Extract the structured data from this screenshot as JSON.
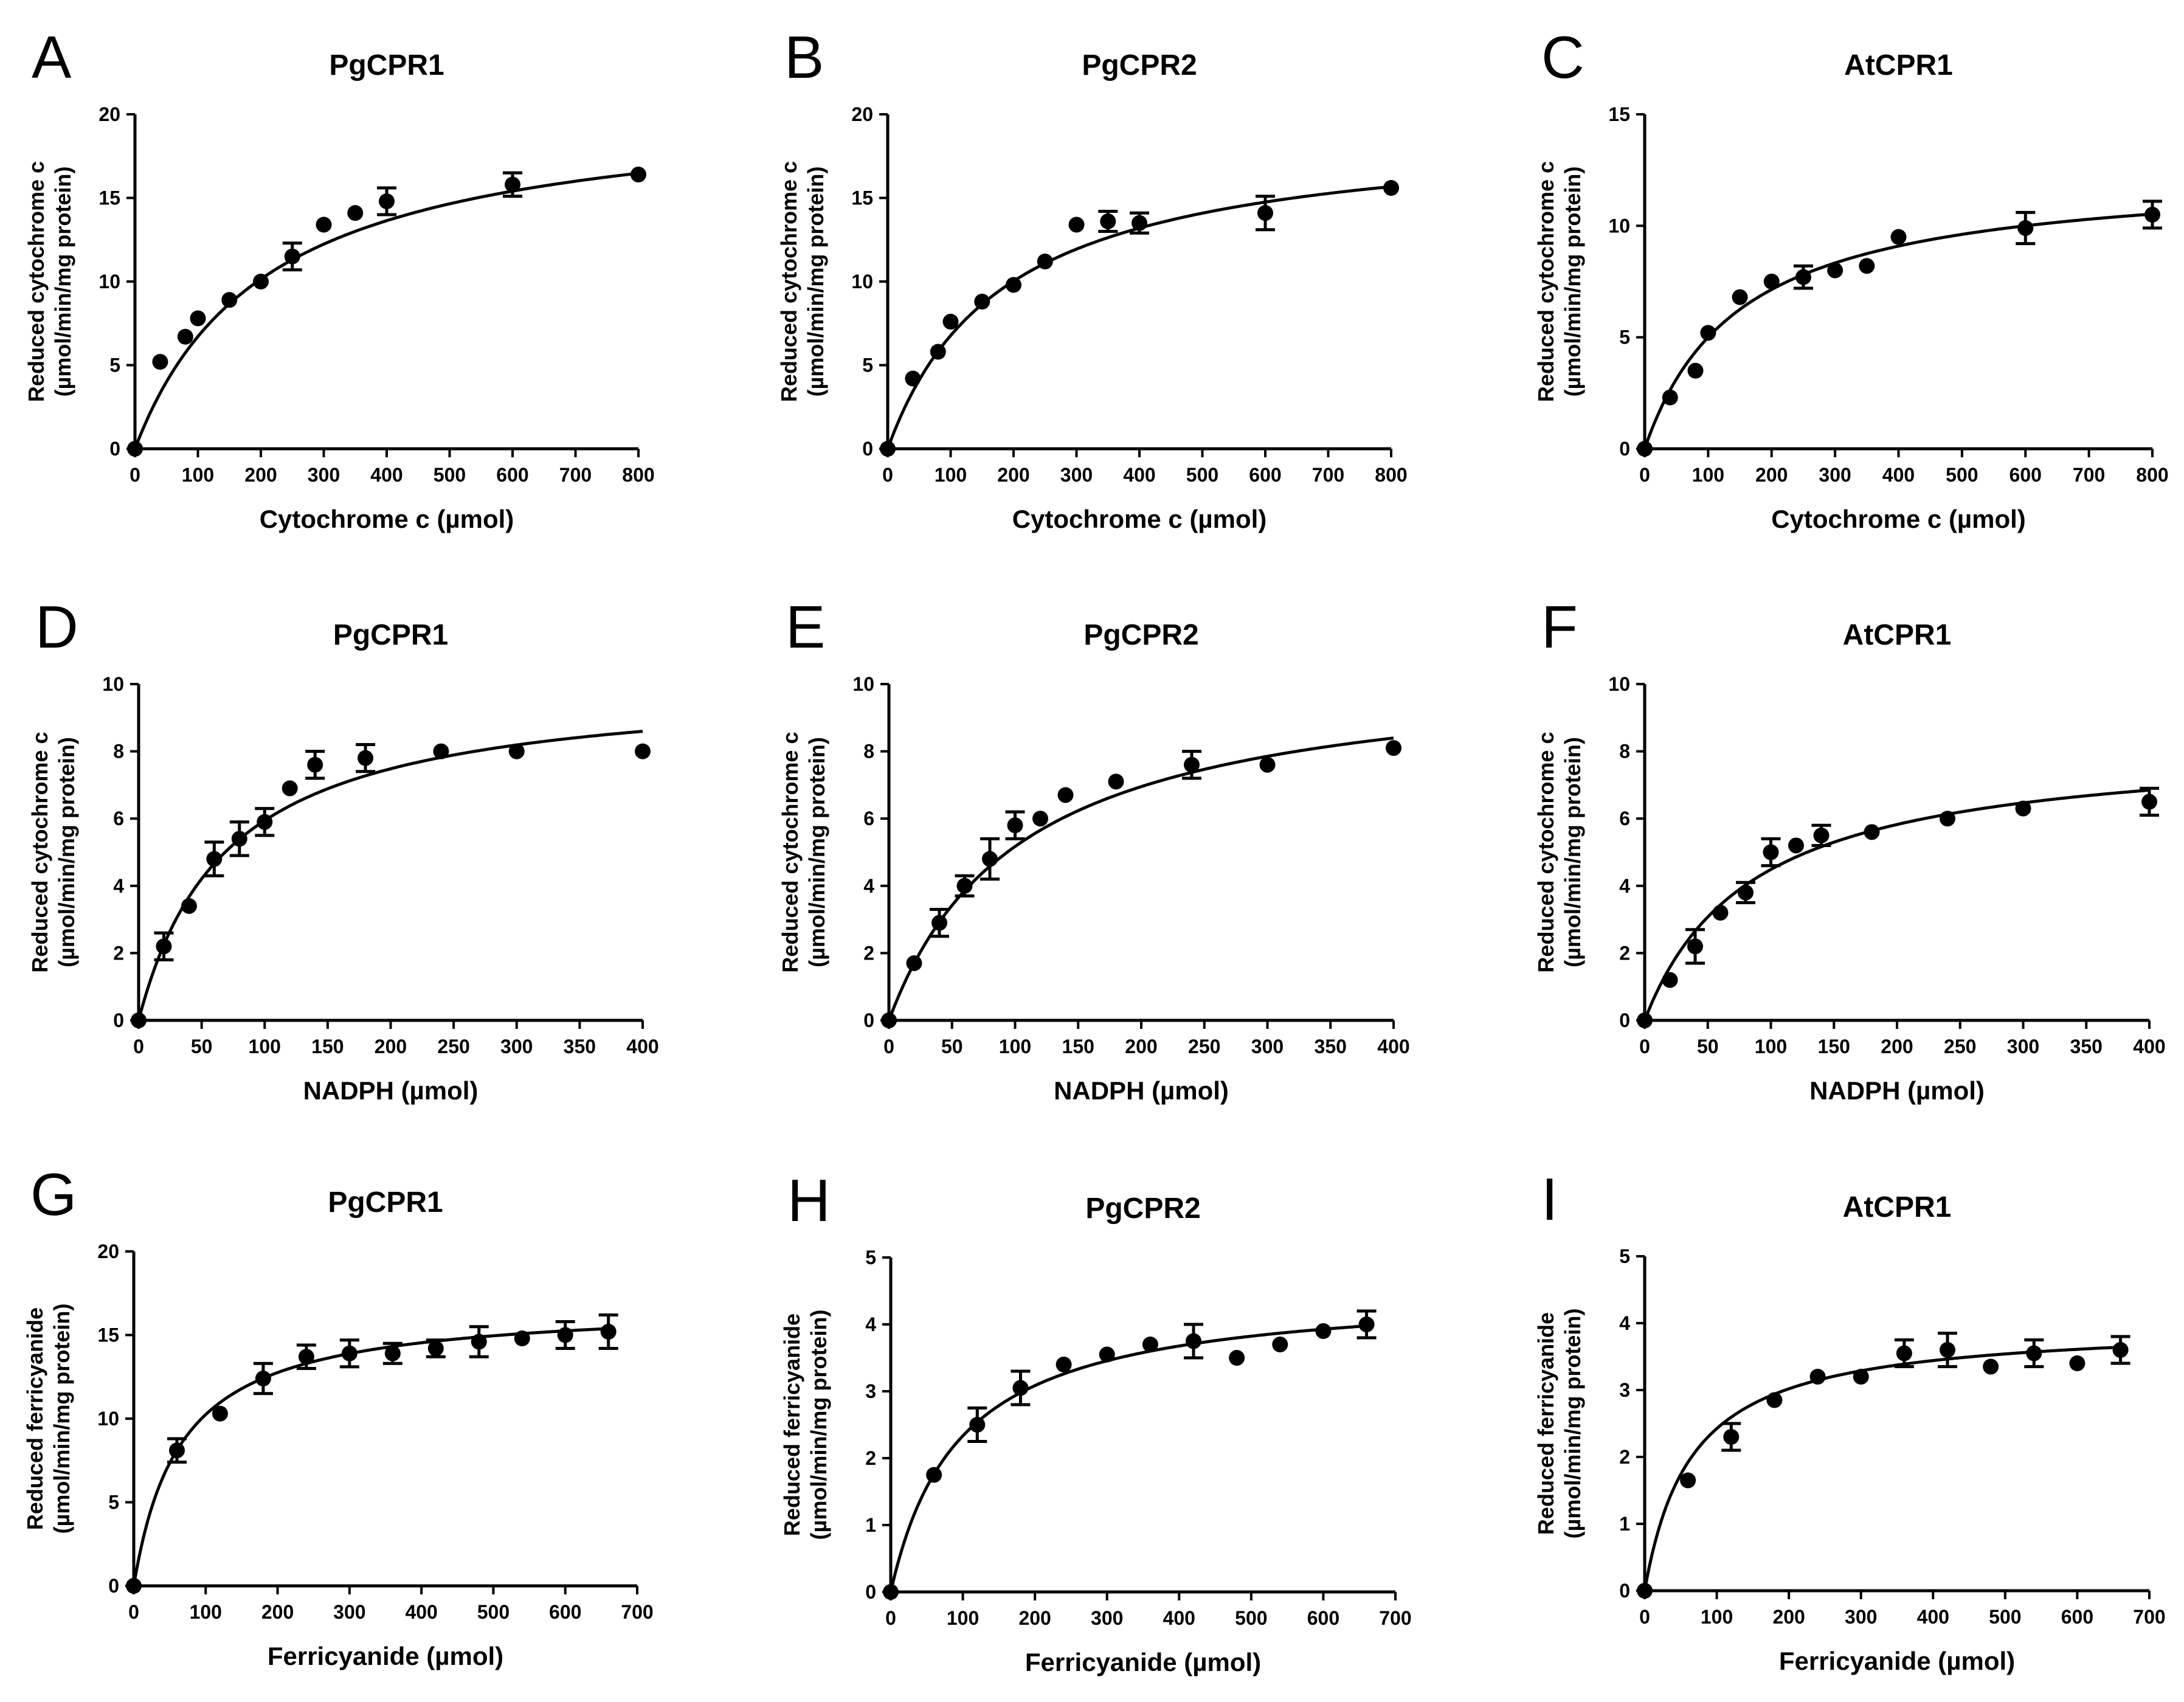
{
  "chart_data": [
    {
      "panel": "A",
      "title": "PgCPR1",
      "type": "scatter",
      "xlabel": "Cytochrome c (µmol)",
      "ylabel": [
        "Reduced cytochrome c",
        "(µmol/min/mg protein)"
      ],
      "xlim": [
        0,
        800
      ],
      "ylim": [
        0,
        20
      ],
      "xticks": [
        0,
        100,
        200,
        300,
        400,
        500,
        600,
        700,
        800
      ],
      "yticks": [
        0,
        5,
        10,
        15,
        20
      ],
      "fit": {
        "model": "michaelis-menten",
        "vmax": 20.8,
        "km": 210
      },
      "x": [
        0,
        40,
        80,
        100,
        150,
        200,
        250,
        300,
        350,
        400,
        600,
        800
      ],
      "y": [
        0,
        5.2,
        6.7,
        7.8,
        8.9,
        10.0,
        11.5,
        13.4,
        14.1,
        14.8,
        15.8,
        16.4
      ],
      "err": [
        0,
        0,
        0,
        0,
        0,
        0,
        0.8,
        0,
        0,
        0.8,
        0.7,
        0
      ]
    },
    {
      "panel": "B",
      "title": "PgCPR2",
      "type": "scatter",
      "xlabel": "Cytochrome c (µmol)",
      "ylabel": [
        "Reduced cytochrome c",
        "(µmol/min/mg protein)"
      ],
      "xlim": [
        0,
        800
      ],
      "ylim": [
        0,
        20
      ],
      "xticks": [
        0,
        100,
        200,
        300,
        400,
        500,
        600,
        700,
        800
      ],
      "yticks": [
        0,
        5,
        10,
        15,
        20
      ],
      "fit": {
        "model": "michaelis-menten",
        "vmax": 19.3,
        "km": 185
      },
      "x": [
        0,
        40,
        80,
        100,
        150,
        200,
        250,
        300,
        350,
        400,
        600,
        800
      ],
      "y": [
        0,
        4.2,
        5.8,
        7.6,
        8.8,
        9.8,
        11.2,
        13.4,
        13.6,
        13.5,
        14.1,
        15.6
      ],
      "err": [
        0,
        0,
        0,
        0,
        0,
        0,
        0,
        0,
        0.6,
        0.6,
        1.0,
        0
      ]
    },
    {
      "panel": "C",
      "title": "AtCPR1",
      "type": "scatter",
      "xlabel": "Cytochrome c (µmol)",
      "ylabel": [
        "Reduced cytochrome c",
        "(µmol/min/mg protein)"
      ],
      "xlim": [
        0,
        800
      ],
      "ylim": [
        0,
        15
      ],
      "xticks": [
        0,
        100,
        200,
        300,
        400,
        500,
        600,
        700,
        800
      ],
      "yticks": [
        0,
        5,
        10,
        15
      ],
      "fit": {
        "model": "michaelis-menten",
        "vmax": 12.5,
        "km": 150
      },
      "x": [
        0,
        40,
        80,
        100,
        150,
        200,
        250,
        300,
        350,
        400,
        600,
        800
      ],
      "y": [
        0,
        2.3,
        3.5,
        5.2,
        6.8,
        7.5,
        7.7,
        8.0,
        8.2,
        9.5,
        9.9,
        10.5
      ],
      "err": [
        0,
        0,
        0,
        0,
        0,
        0,
        0.5,
        0,
        0,
        0,
        0.7,
        0.6
      ]
    },
    {
      "panel": "D",
      "title": "PgCPR1",
      "type": "scatter",
      "xlabel": "NADPH (µmol)",
      "ylabel": [
        "Reduced cytochrome c",
        "(µmol/min/mg protein)"
      ],
      "xlim": [
        0,
        400
      ],
      "ylim": [
        0,
        10
      ],
      "xticks": [
        0,
        50,
        100,
        150,
        200,
        250,
        300,
        350,
        400
      ],
      "yticks": [
        0,
        2,
        4,
        6,
        8,
        10
      ],
      "fit": {
        "model": "michaelis-menten",
        "vmax": 10.1,
        "km": 70
      },
      "x": [
        0,
        20,
        40,
        60,
        80,
        100,
        120,
        140,
        180,
        240,
        300,
        400
      ],
      "y": [
        0,
        2.2,
        3.4,
        4.8,
        5.4,
        5.9,
        6.9,
        7.6,
        7.8,
        8.0,
        8.0,
        8.0
      ],
      "err": [
        0,
        0.4,
        0,
        0.5,
        0.5,
        0.4,
        0,
        0.4,
        0.4,
        0,
        0,
        0
      ]
    },
    {
      "panel": "E",
      "title": "PgCPR2",
      "type": "scatter",
      "xlabel": "NADPH (µmol)",
      "ylabel": [
        "Reduced cytochrome c",
        "(µmol/min/mg protein)"
      ],
      "xlim": [
        0,
        400
      ],
      "ylim": [
        0,
        10
      ],
      "xticks": [
        0,
        50,
        100,
        150,
        200,
        250,
        300,
        350,
        400
      ],
      "yticks": [
        0,
        2,
        4,
        6,
        8,
        10
      ],
      "fit": {
        "model": "michaelis-menten",
        "vmax": 10.6,
        "km": 105
      },
      "x": [
        0,
        20,
        40,
        60,
        80,
        100,
        120,
        140,
        180,
        240,
        300,
        400
      ],
      "y": [
        0,
        1.7,
        2.9,
        4.0,
        4.8,
        5.8,
        6.0,
        6.7,
        7.1,
        7.6,
        7.6,
        8.1
      ],
      "err": [
        0,
        0,
        0.4,
        0.3,
        0.6,
        0.4,
        0,
        0,
        0,
        0.4,
        0,
        0
      ]
    },
    {
      "panel": "F",
      "title": "AtCPR1",
      "type": "scatter",
      "xlabel": "NADPH (µmol)",
      "ylabel": [
        "Reduced cytochrome c",
        "(µmol/min/mg protein)"
      ],
      "xlim": [
        0,
        400
      ],
      "ylim": [
        0,
        10
      ],
      "xticks": [
        0,
        50,
        100,
        150,
        200,
        250,
        300,
        350,
        400
      ],
      "yticks": [
        0,
        2,
        4,
        6,
        8,
        10
      ],
      "fit": {
        "model": "michaelis-menten",
        "vmax": 8.3,
        "km": 85
      },
      "x": [
        0,
        20,
        40,
        60,
        80,
        100,
        120,
        140,
        180,
        240,
        300,
        400
      ],
      "y": [
        0,
        1.2,
        2.2,
        3.2,
        3.8,
        5.0,
        5.2,
        5.5,
        5.6,
        6.0,
        6.3,
        6.5
      ],
      "err": [
        0,
        0,
        0.5,
        0,
        0.3,
        0.4,
        0,
        0.3,
        0,
        0,
        0,
        0.4
      ]
    },
    {
      "panel": "G",
      "title": "PgCPR1",
      "type": "scatter",
      "xlabel": "Ferricyanide (µmol)",
      "ylabel": [
        "Reduced ferricyanide",
        "(µmol/min/mg protein)"
      ],
      "xlim": [
        0,
        700
      ],
      "ylim": [
        0,
        20
      ],
      "xticks": [
        0,
        100,
        200,
        300,
        400,
        500,
        600,
        700
      ],
      "yticks": [
        0,
        5,
        10,
        15,
        20
      ],
      "fit": {
        "model": "michaelis-menten",
        "vmax": 16.9,
        "km": 65
      },
      "x": [
        0,
        60,
        120,
        180,
        240,
        300,
        360,
        420,
        480,
        540,
        600,
        660
      ],
      "y": [
        0,
        8.1,
        10.3,
        12.4,
        13.7,
        13.9,
        13.9,
        14.2,
        14.6,
        14.8,
        15.0,
        15.2
      ],
      "err": [
        0,
        0.7,
        0,
        0.9,
        0.7,
        0.8,
        0.6,
        0.5,
        0.9,
        0,
        0.8,
        1.0
      ]
    },
    {
      "panel": "H",
      "title": "PgCPR2",
      "type": "scatter",
      "xlabel": "Ferricyanide (µmol)",
      "ylabel": [
        "Reduced ferricyanide",
        "(µmol/min/mg protein)"
      ],
      "xlim": [
        0,
        700
      ],
      "ylim": [
        0,
        5
      ],
      "xticks": [
        0,
        100,
        200,
        300,
        400,
        500,
        600,
        700
      ],
      "yticks": [
        0,
        1,
        2,
        3,
        4,
        5
      ],
      "fit": {
        "model": "michaelis-menten",
        "vmax": 4.55,
        "km": 95
      },
      "x": [
        0,
        60,
        120,
        180,
        240,
        300,
        360,
        420,
        480,
        540,
        600,
        660
      ],
      "y": [
        0,
        1.75,
        2.5,
        3.05,
        3.4,
        3.55,
        3.7,
        3.75,
        3.5,
        3.7,
        3.9,
        4.0
      ],
      "err": [
        0,
        0,
        0.25,
        0.25,
        0,
        0,
        0,
        0.25,
        0,
        0,
        0,
        0.2
      ]
    },
    {
      "panel": "I",
      "title": "AtCPR1",
      "type": "scatter",
      "xlabel": "Ferricyanide (µmol)",
      "ylabel": [
        "Reduced ferricyanide",
        "(µmol/min/mg protein)"
      ],
      "xlim": [
        0,
        700
      ],
      "ylim": [
        0,
        5
      ],
      "xticks": [
        0,
        100,
        200,
        300,
        400,
        500,
        600,
        700
      ],
      "yticks": [
        0,
        1,
        2,
        3,
        4,
        5
      ],
      "fit": {
        "model": "michaelis-menten",
        "vmax": 4.0,
        "km": 65
      },
      "x": [
        0,
        60,
        120,
        180,
        240,
        300,
        360,
        420,
        480,
        540,
        600,
        660
      ],
      "y": [
        0,
        1.65,
        2.3,
        2.85,
        3.2,
        3.2,
        3.55,
        3.6,
        3.35,
        3.55,
        3.4,
        3.6
      ],
      "err": [
        0,
        0,
        0.2,
        0,
        0,
        0,
        0.2,
        0.25,
        0,
        0.2,
        0,
        0.2
      ]
    }
  ]
}
